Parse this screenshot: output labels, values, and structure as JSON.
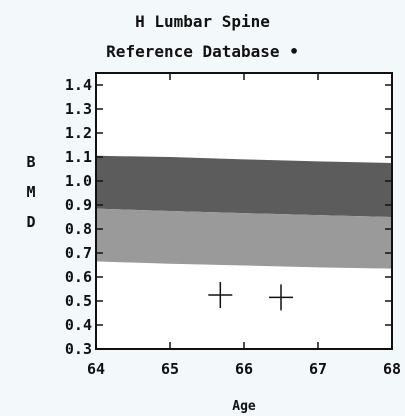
{
  "chart_data": {
    "type": "area",
    "title": "H Lumbar Spine",
    "subtitle": "Reference Database •",
    "xlabel": "Age",
    "ylabel": "BMD",
    "xlim": [
      64,
      68
    ],
    "ylim": [
      0.3,
      1.45
    ],
    "x_ticks": [
      "64",
      "65",
      "66",
      "67",
      "68"
    ],
    "y_ticks": [
      "0.3",
      "0.4",
      "0.5",
      "0.6",
      "0.7",
      "0.8",
      "0.9",
      "1.0",
      "1.1",
      "1.2",
      "1.3",
      "1.4"
    ],
    "grid": false,
    "bands": [
      {
        "x": [
          64,
          65,
          66,
          67,
          68
        ],
        "lower": [
          0.885,
          0.875,
          0.866,
          0.858,
          0.85
        ],
        "upper": [
          1.105,
          1.1,
          1.09,
          1.082,
          1.075
        ],
        "color": "#5c5c5c"
      },
      {
        "x": [
          64,
          65,
          66,
          67,
          68
        ],
        "lower": [
          0.665,
          0.655,
          0.648,
          0.64,
          0.635
        ],
        "upper": [
          0.885,
          0.875,
          0.866,
          0.858,
          0.85
        ],
        "color": "#9a9a9a"
      }
    ],
    "points": [
      {
        "x": 65.68,
        "y": 0.525
      },
      {
        "x": 66.5,
        "y": 0.515
      }
    ]
  }
}
